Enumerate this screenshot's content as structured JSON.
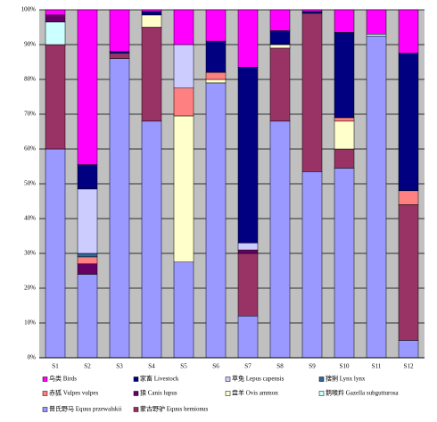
{
  "chart_data": {
    "type": "stacked_bar",
    "categories": [
      "S1",
      "S2",
      "S3",
      "S4",
      "S5",
      "S6",
      "S7",
      "S8",
      "S9",
      "S10",
      "S11",
      "S12"
    ],
    "series": [
      {
        "name": "普氏野马 Equus przewalskii",
        "color": "#9999FF",
        "values": [
          60,
          24,
          86,
          68,
          27.5,
          79,
          12,
          68,
          53.5,
          54.5,
          92.5,
          5
        ]
      },
      {
        "name": "蒙古野驴 Equus hemionus",
        "color": "#993366",
        "values": [
          30,
          0,
          1.5,
          27,
          0,
          0,
          18,
          21,
          45.5,
          5.5,
          0,
          39
        ]
      },
      {
        "name": "鹅喉羚 Gazella subgutturosa",
        "color": "#CCFFFF",
        "values": [
          6.5,
          0,
          0,
          0,
          0,
          0,
          0,
          0,
          0,
          0,
          0.5,
          0
        ]
      },
      {
        "name": "盘羊 Ovis ammon",
        "color": "#FFFFCC",
        "values": [
          0,
          0,
          0,
          3.5,
          42,
          1,
          0,
          1,
          0,
          8,
          0,
          0
        ]
      },
      {
        "name": "狼 Canis lupus",
        "color": "#660066",
        "values": [
          2,
          3,
          0,
          0,
          0,
          0,
          1,
          0,
          0,
          0,
          0,
          0
        ]
      },
      {
        "name": "赤狐 Vulpes vulpes",
        "color": "#FF8080",
        "values": [
          0,
          2,
          0,
          0,
          8,
          2,
          0,
          0,
          0,
          1,
          0,
          4
        ]
      },
      {
        "name": "猞猁 Lynx lynx",
        "color": "#336699",
        "values": [
          0,
          1,
          0,
          0,
          0,
          0,
          0,
          0,
          0,
          0,
          0,
          0
        ]
      },
      {
        "name": "草兔 Lepus capensis",
        "color": "#CCCCFF",
        "values": [
          0,
          18.5,
          0,
          0,
          12.5,
          0,
          2,
          0,
          0,
          0,
          0,
          0
        ]
      },
      {
        "name": "家畜 Livestock",
        "color": "#000080",
        "values": [
          0,
          7,
          0.5,
          1,
          0,
          9,
          50.5,
          4,
          0.5,
          24.5,
          0,
          39.5
        ]
      },
      {
        "name": "鸟类 Birds",
        "color": "#FF00FF",
        "values": [
          1.5,
          44.5,
          12,
          0.5,
          10,
          9,
          16.5,
          6,
          0.5,
          6.5,
          7,
          12.5
        ]
      }
    ],
    "ylim": [
      0,
      100
    ],
    "yticks": [
      {
        "value": 0,
        "label": "0%"
      },
      {
        "value": 10,
        "label": "10%"
      },
      {
        "value": 20,
        "label": "20%"
      },
      {
        "value": 30,
        "label": "30%"
      },
      {
        "value": 40,
        "label": "40%"
      },
      {
        "value": 50,
        "label": "50%"
      },
      {
        "value": 60,
        "label": "60%"
      },
      {
        "value": 70,
        "label": "70%"
      },
      {
        "value": 80,
        "label": "80%"
      },
      {
        "value": 90,
        "label": "90%"
      },
      {
        "value": 100,
        "label": "100%"
      }
    ],
    "grid": true
  }
}
